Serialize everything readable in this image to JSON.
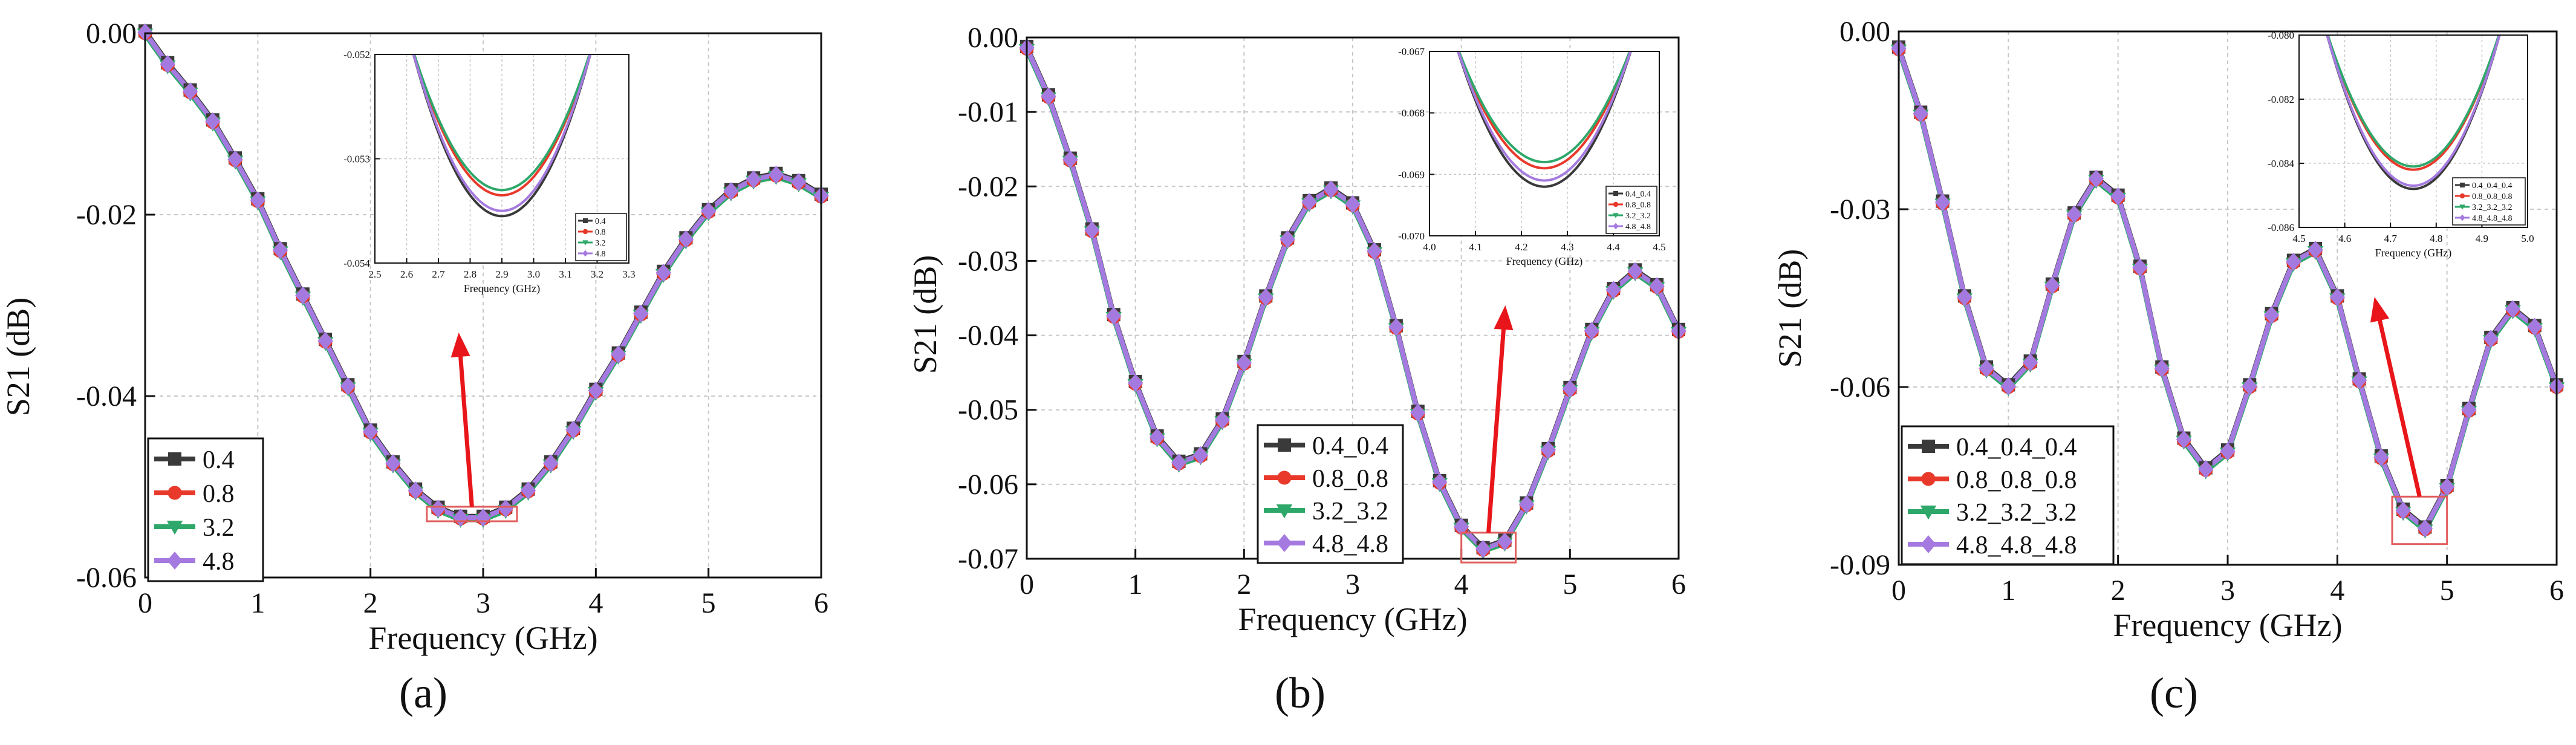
{
  "colors": {
    "s1": "#3a3a3a",
    "s2": "#e8392b",
    "s3": "#2ea86a",
    "s4": "#a57ae0",
    "arrow": "#e8161a",
    "box": "#e25d5d",
    "grid": "#c8c8c8",
    "axis": "#111111"
  },
  "chart_data": [
    {
      "type": "line",
      "panel_label": "(a)",
      "xlabel": "Frequency (GHz)",
      "ylabel": "S21 (dB)",
      "xlim": [
        0,
        6
      ],
      "ylim": [
        -0.06,
        0
      ],
      "xticks": [
        0,
        1,
        2,
        3,
        4,
        5,
        6
      ],
      "yticks": [
        0,
        -0.02,
        -0.04,
        -0.06
      ],
      "xtick_labels": [
        "0",
        "1",
        "2",
        "3",
        "4",
        "5",
        "6"
      ],
      "ytick_labels": [
        "0.00",
        "-0.02",
        "-0.04",
        "-0.06"
      ],
      "legend": [
        "0.4",
        "0.8",
        "3.2",
        "4.8"
      ],
      "curve": {
        "x": [
          0,
          0.2,
          0.4,
          0.6,
          0.8,
          1.0,
          1.2,
          1.4,
          1.6,
          1.8,
          2.0,
          2.2,
          2.4,
          2.6,
          2.8,
          3.0,
          3.2,
          3.4,
          3.6,
          3.8,
          4.0,
          4.2,
          4.4,
          4.6,
          4.8,
          5.0,
          5.2,
          5.4,
          5.6,
          5.8,
          6.0
        ],
        "y": [
          0,
          -0.0035,
          -0.0065,
          -0.0098,
          -0.014,
          -0.0185,
          -0.024,
          -0.029,
          -0.034,
          -0.039,
          -0.044,
          -0.0475,
          -0.0505,
          -0.0525,
          -0.0535,
          -0.0535,
          -0.0525,
          -0.0505,
          -0.0475,
          -0.0438,
          -0.0395,
          -0.0355,
          -0.031,
          -0.0265,
          -0.0228,
          -0.0197,
          -0.0175,
          -0.0162,
          -0.0157,
          -0.0165,
          -0.018
        ]
      },
      "marker_step": 0.2,
      "zoom_box": {
        "x": [
          2.5,
          3.3
        ],
        "y": [
          -0.0538,
          -0.0522
        ]
      },
      "inset": {
        "xlabel": "Frequency (GHz)",
        "xlim": [
          2.5,
          3.3
        ],
        "ylim": [
          -0.054,
          -0.052
        ],
        "xticks": [
          2.5,
          2.6,
          2.7,
          2.8,
          2.9,
          3.0,
          3.1,
          3.2,
          3.3
        ],
        "xtick_labels": [
          "2.5",
          "2.6",
          "2.7",
          "2.8",
          "2.9",
          "3.0",
          "3.1",
          "3.2",
          "3.3"
        ],
        "yticks": [
          -0.052,
          -0.053,
          -0.054
        ],
        "ytick_labels": [
          "-0.052",
          "-0.053",
          "-0.054"
        ],
        "center": 2.9,
        "half_width": 0.34,
        "minima": [
          -0.05355,
          -0.05335,
          -0.0533,
          -0.0535
        ],
        "legend": [
          "0.4",
          "0.8",
          "3.2",
          "4.8"
        ]
      }
    },
    {
      "type": "line",
      "panel_label": "(b)",
      "xlabel": "Frequency (GHz)",
      "ylabel": "S21 (dB)",
      "xlim": [
        0,
        6
      ],
      "ylim": [
        -0.07,
        0
      ],
      "xticks": [
        0,
        1,
        2,
        3,
        4,
        5,
        6
      ],
      "yticks": [
        0,
        -0.01,
        -0.02,
        -0.03,
        -0.04,
        -0.05,
        -0.06,
        -0.07
      ],
      "xtick_labels": [
        "0",
        "1",
        "2",
        "3",
        "4",
        "5",
        "6"
      ],
      "ytick_labels": [
        "0.00",
        "-0.01",
        "-0.02",
        "-0.03",
        "-0.04",
        "-0.05",
        "-0.06",
        "-0.07"
      ],
      "legend": [
        "0.4_0.4",
        "0.8_0.8",
        "3.2_3.2",
        "4.8_4.8"
      ],
      "curve": {
        "x": [
          0,
          0.2,
          0.4,
          0.6,
          0.8,
          1.0,
          1.2,
          1.4,
          1.6,
          1.8,
          2.0,
          2.2,
          2.4,
          2.6,
          2.8,
          3.0,
          3.2,
          3.4,
          3.6,
          3.8,
          4.0,
          4.2,
          4.4,
          4.6,
          4.8,
          5.0,
          5.2,
          5.4,
          5.6,
          5.8,
          6.0
        ],
        "y": [
          -0.0015,
          -0.008,
          -0.0165,
          -0.026,
          -0.0375,
          -0.0465,
          -0.0538,
          -0.0572,
          -0.0562,
          -0.0515,
          -0.0438,
          -0.035,
          -0.0272,
          -0.0222,
          -0.0205,
          -0.0225,
          -0.0288,
          -0.039,
          -0.0505,
          -0.0598,
          -0.0658,
          -0.0688,
          -0.0678,
          -0.0628,
          -0.0555,
          -0.0473,
          -0.0395,
          -0.034,
          -0.0315,
          -0.0335,
          -0.0395
        ]
      },
      "marker_step": 0.2,
      "zoom_box": {
        "x": [
          4.0,
          4.5
        ],
        "y": [
          -0.0705,
          -0.0665
        ]
      },
      "inset": {
        "xlabel": "Frequency (GHz)",
        "xlim": [
          4.0,
          4.5
        ],
        "ylim": [
          -0.07,
          -0.067
        ],
        "xticks": [
          4.0,
          4.1,
          4.2,
          4.3,
          4.4,
          4.5
        ],
        "xtick_labels": [
          "4.0",
          "4.1",
          "4.2",
          "4.3",
          "4.4",
          "4.5"
        ],
        "yticks": [
          -0.067,
          -0.068,
          -0.069,
          -0.07
        ],
        "ytick_labels": [
          "-0.067",
          "-0.068",
          "-0.069",
          "-0.070"
        ],
        "center": 4.25,
        "half_width": 0.23,
        "minima": [
          -0.0692,
          -0.0689,
          -0.0688,
          -0.0691
        ],
        "legend": [
          "0.4_0.4",
          "0.8_0.8",
          "3.2_3.2",
          "4.8_4.8"
        ]
      }
    },
    {
      "type": "line",
      "panel_label": "(c)",
      "xlabel": "Frequency (GHz)",
      "ylabel": "S21 (dB)",
      "xlim": [
        0,
        6
      ],
      "ylim": [
        -0.09,
        0
      ],
      "xticks": [
        0,
        1,
        2,
        3,
        4,
        5,
        6
      ],
      "yticks": [
        0,
        -0.03,
        -0.06,
        -0.09
      ],
      "xtick_labels": [
        "0",
        "1",
        "2",
        "3",
        "4",
        "5",
        "6"
      ],
      "ytick_labels": [
        "0.00",
        "-0.03",
        "-0.06",
        "-0.09"
      ],
      "legend": [
        "0.4_0.4_0.4",
        "0.8_0.8_0.8",
        "3.2_3.2_3.2",
        "4.8_4.8_4.8"
      ],
      "curve": {
        "x": [
          0,
          0.2,
          0.4,
          0.6,
          0.8,
          1.0,
          1.2,
          1.4,
          1.6,
          1.8,
          2.0,
          2.2,
          2.4,
          2.6,
          2.8,
          3.0,
          3.2,
          3.4,
          3.6,
          3.8,
          4.0,
          4.2,
          4.4,
          4.6,
          4.8,
          5.0,
          5.2,
          5.4,
          5.6,
          5.8,
          6.0
        ],
        "y": [
          -0.003,
          -0.014,
          -0.029,
          -0.045,
          -0.057,
          -0.06,
          -0.056,
          -0.043,
          -0.031,
          -0.025,
          -0.028,
          -0.04,
          -0.057,
          -0.069,
          -0.074,
          -0.071,
          -0.06,
          -0.048,
          -0.039,
          -0.037,
          -0.045,
          -0.059,
          -0.072,
          -0.081,
          -0.084,
          -0.077,
          -0.064,
          -0.052,
          -0.047,
          -0.05,
          -0.06
        ]
      },
      "marker_step": 0.2,
      "zoom_box": {
        "x": [
          4.5,
          5.0
        ],
        "y": [
          -0.0865,
          -0.0785
        ]
      },
      "inset": {
        "xlabel": "Frequency (GHz)",
        "xlim": [
          4.5,
          5.0
        ],
        "ylim": [
          -0.086,
          -0.08
        ],
        "xticks": [
          4.5,
          4.6,
          4.7,
          4.8,
          4.9,
          5.0
        ],
        "xtick_labels": [
          "4.5",
          "4.6",
          "4.7",
          "4.8",
          "4.9",
          "5.0"
        ],
        "yticks": [
          -0.08,
          -0.082,
          -0.084,
          -0.086
        ],
        "ytick_labels": [
          "-0.080",
          "-0.082",
          "-0.084",
          "-0.086"
        ],
        "center": 4.75,
        "half_width": 0.23,
        "minima": [
          -0.0848,
          -0.0842,
          -0.0841,
          -0.0847
        ],
        "legend": [
          "0.4_0.4_0.4",
          "0.8_0.8_0.8",
          "3.2_3.2_3.2",
          "4.8_4.8_4.8"
        ]
      }
    }
  ]
}
